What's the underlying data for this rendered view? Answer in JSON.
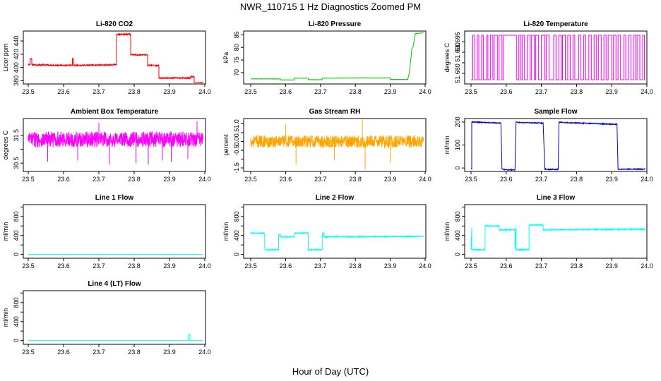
{
  "title": "NWR_110715  1 Hz Diagnostics Zoomed PM",
  "xlabel": "Hour of Day (UTC)",
  "chart_data": [
    {
      "type": "line",
      "title": "Li-820 CO2",
      "ylabel": "Licor ppm",
      "color": "#ff0000",
      "xlim": [
        23.5,
        24.0
      ],
      "ylim": [
        375,
        455
      ],
      "xticks": [
        "23.5",
        "23.6",
        "23.7",
        "23.8",
        "23.9",
        "24.0"
      ],
      "yticks": [
        380,
        400,
        420,
        440
      ],
      "ytick_labels": [
        "380",
        "400",
        "420",
        "440"
      ],
      "x": [
        23.5,
        23.505,
        23.505,
        23.51,
        23.51,
        23.625,
        23.625,
        23.628,
        23.628,
        23.75,
        23.75,
        23.757,
        23.757,
        23.79,
        23.79,
        23.838,
        23.838,
        23.87,
        23.87,
        23.96,
        23.96,
        23.97,
        23.97,
        23.995
      ],
      "y": [
        404,
        404,
        413,
        413,
        404,
        403,
        413,
        413,
        403,
        404,
        450,
        450,
        450,
        450,
        419,
        419,
        403,
        403,
        384,
        384,
        386,
        386,
        376,
        376
      ],
      "noise": 1.0
    },
    {
      "type": "line",
      "title": "Li-820 Pressure",
      "ylabel": "kPa",
      "color": "#00cc00",
      "xlim": [
        23.5,
        24.0
      ],
      "ylim": [
        65.5,
        86.5
      ],
      "xticks": [
        "23.5",
        "23.6",
        "23.7",
        "23.8",
        "23.9",
        "24.0"
      ],
      "yticks": [
        70,
        75,
        80,
        85
      ],
      "ytick_labels": [
        "70",
        "75",
        "80",
        "85"
      ],
      "x": [
        23.5,
        23.585,
        23.585,
        23.625,
        23.625,
        23.665,
        23.665,
        23.705,
        23.705,
        23.75,
        23.75,
        23.9,
        23.9,
        23.95,
        23.955,
        23.962,
        23.965,
        23.972,
        23.995
      ],
      "y": [
        67.5,
        67.5,
        67.1,
        67.1,
        67.8,
        67.8,
        67.2,
        67.2,
        67.8,
        67.8,
        67.9,
        67.9,
        67.3,
        67.3,
        70,
        79.5,
        80,
        85.5,
        85.8
      ],
      "noise": 0.05
    },
    {
      "type": "line",
      "title": "Li-820 Temperature",
      "ylabel": "degrees C",
      "color": "#ff00ff",
      "xlim": [
        23.5,
        24.0
      ],
      "ylim": [
        51.675,
        51.7
      ],
      "xticks": [
        "23.5",
        "23.6",
        "23.7",
        "23.8",
        "23.9",
        "24.0"
      ],
      "yticks": [
        51.68,
        51.685,
        51.69,
        51.695
      ],
      "ytick_labels": [
        "51.680",
        "",
        "51.690",
        "51.695"
      ],
      "levels": [
        51.677,
        51.698
      ],
      "switch_times": [
        23.505,
        23.51,
        23.518,
        23.522,
        23.53,
        23.535,
        23.545,
        23.548,
        23.555,
        23.562,
        23.566,
        23.575,
        23.58,
        23.588,
        23.592,
        23.63,
        23.636,
        23.642,
        23.646,
        23.652,
        23.66,
        23.668,
        23.672,
        23.68,
        23.684,
        23.692,
        23.7,
        23.71,
        23.714,
        23.722,
        23.735,
        23.742,
        23.75,
        23.756,
        23.76,
        23.768,
        23.775,
        23.782,
        23.79,
        23.795,
        23.806,
        23.812,
        23.82,
        23.826,
        23.835,
        23.842,
        23.85,
        23.856,
        23.862,
        23.87,
        23.878,
        23.884,
        23.89,
        23.9,
        23.905,
        23.912,
        23.918,
        23.925,
        23.935,
        23.94,
        23.948,
        23.955,
        23.962,
        23.968,
        23.972,
        23.98,
        23.988,
        23.993
      ]
    },
    {
      "type": "line",
      "title": "Ambient Box Temperature",
      "ylabel": "degrees C",
      "color": "#ff00ff",
      "xlim": [
        23.5,
        24.0
      ],
      "ylim": [
        30.2,
        32.1
      ],
      "xticks": [
        "23.5",
        "23.6",
        "23.7",
        "23.8",
        "23.9",
        "24.0"
      ],
      "yticks": [
        30.5,
        31.0,
        31.5
      ],
      "ytick_labels": [
        "30.5",
        "",
        "31.5"
      ],
      "x": [
        23.5,
        23.995
      ],
      "y": [
        31.35,
        31.35
      ],
      "noise": 0.28,
      "spikes": [
        [
          23.555,
          30.55
        ],
        [
          23.64,
          30.6
        ],
        [
          23.73,
          30.45
        ],
        [
          23.805,
          30.5
        ],
        [
          23.84,
          30.45
        ],
        [
          23.88,
          30.6
        ],
        [
          23.905,
          30.55
        ],
        [
          23.952,
          30.65
        ],
        [
          23.978,
          32.0
        ],
        [
          23.7,
          31.95
        ]
      ]
    },
    {
      "type": "line",
      "title": "Gas Stream RH",
      "ylabel": "percent",
      "color": "#ffa500",
      "xlim": [
        23.5,
        24.0
      ],
      "ylim": [
        -1.7,
        1.3
      ],
      "xticks": [
        "23.5",
        "23.6",
        "23.7",
        "23.8",
        "23.9",
        "24.0"
      ],
      "yticks": [
        -1.5,
        -1.0,
        -0.5,
        0.0,
        0.5,
        1.0
      ],
      "ytick_labels": [
        "-1.5",
        "",
        "-0.5",
        "0.0",
        "0.5",
        "1.0"
      ],
      "x": [
        23.5,
        23.995
      ],
      "y": [
        0.0,
        0.0
      ],
      "noise": 0.35,
      "spikes": [
        [
          23.63,
          -1.3
        ],
        [
          23.82,
          1.25
        ],
        [
          23.828,
          -1.6
        ],
        [
          23.9,
          -1.2
        ],
        [
          23.74,
          -1.05
        ],
        [
          23.6,
          0.95
        ]
      ]
    },
    {
      "type": "line",
      "title": "Sample Flow",
      "ylabel": "ml/min",
      "color": "#0000cc",
      "xlim": [
        23.5,
        24.0
      ],
      "ylim": [
        -15,
        215
      ],
      "xticks": [
        "23.5",
        "23.6",
        "23.7",
        "23.8",
        "23.9",
        "24.0"
      ],
      "yticks": [
        0,
        100,
        200
      ],
      "ytick_labels": [
        "0",
        "100",
        "200"
      ],
      "x": [
        23.5,
        23.502,
        23.502,
        23.585,
        23.588,
        23.6,
        23.625,
        23.628,
        23.635,
        23.705,
        23.71,
        23.715,
        23.748,
        23.75,
        23.755,
        23.915,
        23.918,
        23.922,
        23.995
      ],
      "y": [
        -5,
        -5,
        200,
        195,
        -5,
        -8,
        -8,
        200,
        198,
        195,
        -5,
        -6,
        -6,
        200,
        198,
        190,
        -5,
        -5,
        -5
      ],
      "noise": 2.0
    },
    {
      "type": "line",
      "title": "Line 1 Flow",
      "ylabel": "ml/min",
      "color": "#00ffff",
      "xlim": [
        23.5,
        24.0
      ],
      "ylim": [
        -80,
        1050
      ],
      "xticks": [
        "23.5",
        "23.6",
        "23.7",
        "23.8",
        "23.9",
        "24.0"
      ],
      "yticks": [
        0,
        200,
        400,
        600,
        800,
        1000
      ],
      "ytick_labels": [
        "0",
        "",
        "400",
        "",
        "800",
        ""
      ],
      "x": [
        23.5,
        23.995
      ],
      "y": [
        0,
        0
      ],
      "noise": 0
    },
    {
      "type": "line",
      "title": "Line 2 Flow",
      "ylabel": "ml/min",
      "color": "#00ffff",
      "xlim": [
        23.5,
        24.0
      ],
      "ylim": [
        -80,
        1050
      ],
      "xticks": [
        "23.5",
        "23.6",
        "23.7",
        "23.8",
        "23.9",
        "24.0"
      ],
      "yticks": [
        0,
        200,
        400,
        600,
        800,
        1000
      ],
      "ytick_labels": [
        "0",
        "",
        "400",
        "",
        "800",
        ""
      ],
      "x": [
        23.5,
        23.54,
        23.54,
        23.58,
        23.58,
        23.585,
        23.585,
        23.625,
        23.625,
        23.665,
        23.665,
        23.705,
        23.705,
        23.71,
        23.71,
        23.995
      ],
      "y": [
        450,
        450,
        100,
        100,
        420,
        420,
        370,
        370,
        450,
        450,
        100,
        100,
        450,
        450,
        370,
        380
      ],
      "noise": 10
    },
    {
      "type": "line",
      "title": "Line 3 Flow",
      "ylabel": "ml/min",
      "color": "#00ffff",
      "xlim": [
        23.5,
        24.0
      ],
      "ylim": [
        -80,
        1050
      ],
      "xticks": [
        "23.5",
        "23.6",
        "23.7",
        "23.8",
        "23.9",
        "24.0"
      ],
      "yticks": [
        0,
        200,
        400,
        600,
        800,
        1000
      ],
      "ytick_labels": [
        "0",
        "",
        "400",
        "",
        "800",
        ""
      ],
      "x": [
        23.5,
        23.502,
        23.502,
        23.54,
        23.54,
        23.58,
        23.58,
        23.625,
        23.625,
        23.628,
        23.628,
        23.665,
        23.665,
        23.705,
        23.705,
        23.995
      ],
      "y": [
        100,
        560,
        100,
        100,
        600,
        600,
        520,
        520,
        100,
        560,
        100,
        100,
        620,
        620,
        520,
        530
      ],
      "noise": 12
    },
    {
      "type": "line",
      "title": "Line 4 (LT) Flow",
      "ylabel": "ml/min",
      "color": "#00ffff",
      "xlim": [
        23.5,
        24.0
      ],
      "ylim": [
        -80,
        1050
      ],
      "xticks": [
        "23.5",
        "23.6",
        "23.7",
        "23.8",
        "23.9",
        "24.0"
      ],
      "yticks": [
        0,
        200,
        400,
        600,
        800,
        1000
      ],
      "ytick_labels": [
        "0",
        "",
        "400",
        "",
        "800",
        ""
      ],
      "x": [
        23.5,
        23.955,
        23.955,
        23.958,
        23.958,
        23.995
      ],
      "y": [
        0,
        0,
        130,
        130,
        0,
        0
      ],
      "noise": 0
    }
  ]
}
